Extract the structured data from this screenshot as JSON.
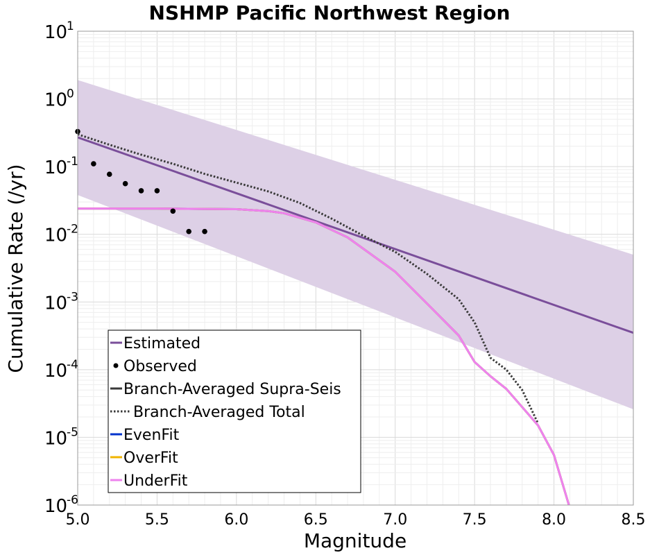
{
  "chart_data": {
    "type": "line",
    "title": "NSHMP Pacific Northwest Region",
    "xlabel": "Magnitude",
    "ylabel": "Cumulative Rate (/yr)",
    "xlim": [
      5.0,
      8.5
    ],
    "ylim": [
      1e-06,
      10
    ],
    "y_scale": "log",
    "x_ticks": [
      "5.0",
      "5.5",
      "6.0",
      "6.5",
      "7.0",
      "7.5",
      "8.0",
      "8.5"
    ],
    "y_ticks": [
      {
        "value": 10,
        "base": "10",
        "exp": "1"
      },
      {
        "value": 1,
        "base": "10",
        "exp": "0"
      },
      {
        "value": 0.1,
        "base": "10",
        "exp": "-1"
      },
      {
        "value": 0.01,
        "base": "10",
        "exp": "-2"
      },
      {
        "value": 0.001,
        "base": "10",
        "exp": "-3"
      },
      {
        "value": 0.0001,
        "base": "10",
        "exp": "-4"
      },
      {
        "value": 1e-05,
        "base": "10",
        "exp": "-5"
      },
      {
        "value": 1e-06,
        "base": "10",
        "exp": "-6"
      }
    ],
    "grid": true,
    "legend_position": "bottom-left",
    "colors": {
      "estimated": "#7a4e9a",
      "band": "#ddd0e6",
      "observed": "#000000",
      "supra": "#3a3a3a",
      "total": "#3a3a3a",
      "evenfit": "#0033cc",
      "overfit": "#f0b400",
      "underfit": "#ee82ee"
    },
    "legend": [
      {
        "key": "estimated",
        "label": "Estimated",
        "style": "line"
      },
      {
        "key": "observed",
        "label": "Observed",
        "style": "dot"
      },
      {
        "key": "supra",
        "label": "Branch-Averaged Supra-Seis",
        "style": "line"
      },
      {
        "key": "total",
        "label": "Branch-Averaged Total",
        "style": "dotted"
      },
      {
        "key": "evenfit",
        "label": "EvenFit",
        "style": "line"
      },
      {
        "key": "overfit",
        "label": "OverFit",
        "style": "line"
      },
      {
        "key": "underfit",
        "label": "UnderFit",
        "style": "line"
      }
    ],
    "band": {
      "x": [
        5.0,
        8.5
      ],
      "upper": [
        1.9,
        0.005
      ],
      "lower": [
        0.038,
        2.6e-05
      ]
    },
    "series": [
      {
        "key": "estimated",
        "name": "Estimated",
        "x": [
          5.0,
          8.5
        ],
        "y": [
          0.27,
          0.00035
        ]
      },
      {
        "key": "total",
        "name": "Branch-Averaged Total",
        "x": [
          5.0,
          5.2,
          5.4,
          5.6,
          5.8,
          6.0,
          6.2,
          6.4,
          6.6,
          6.8,
          7.0,
          7.2,
          7.4,
          7.5,
          7.6,
          7.7,
          7.8,
          7.9
        ],
        "y": [
          0.3,
          0.21,
          0.15,
          0.11,
          0.078,
          0.058,
          0.043,
          0.029,
          0.017,
          0.0095,
          0.0055,
          0.0026,
          0.0011,
          0.0005,
          0.00015,
          0.0001,
          5e-05,
          1.6e-05
        ]
      },
      {
        "key": "evenfit",
        "name": "EvenFit",
        "x": [
          5.0,
          5.5,
          6.0,
          6.2,
          6.3,
          6.5,
          6.7,
          7.0,
          7.2,
          7.4,
          7.5,
          7.6,
          7.7,
          7.8,
          7.9,
          8.0,
          8.1
        ],
        "y": [
          0.024,
          0.024,
          0.0235,
          0.022,
          0.0205,
          0.015,
          0.009,
          0.0028,
          0.00095,
          0.00032,
          0.00013,
          8e-05,
          5.2e-05,
          2.8e-05,
          1.5e-05,
          5.5e-06,
          9e-07
        ]
      },
      {
        "key": "overfit",
        "name": "OverFit",
        "x": [
          5.0,
          5.5,
          6.0,
          6.2,
          6.3,
          6.5,
          6.7,
          7.0,
          7.2,
          7.4,
          7.5,
          7.6,
          7.7,
          7.8,
          7.9,
          8.0,
          8.1
        ],
        "y": [
          0.024,
          0.024,
          0.0235,
          0.022,
          0.0205,
          0.015,
          0.009,
          0.0028,
          0.00095,
          0.00032,
          0.00013,
          8e-05,
          5.2e-05,
          2.8e-05,
          1.5e-05,
          5.5e-06,
          9e-07
        ]
      },
      {
        "key": "underfit",
        "name": "UnderFit",
        "x": [
          5.0,
          5.5,
          6.0,
          6.2,
          6.3,
          6.5,
          6.7,
          7.0,
          7.2,
          7.4,
          7.5,
          7.6,
          7.7,
          7.8,
          7.9,
          8.0,
          8.1
        ],
        "y": [
          0.024,
          0.024,
          0.0235,
          0.022,
          0.0205,
          0.015,
          0.009,
          0.0028,
          0.00095,
          0.00032,
          0.00013,
          8e-05,
          5.2e-05,
          2.8e-05,
          1.5e-05,
          5.5e-06,
          9e-07
        ]
      },
      {
        "key": "observed",
        "name": "Observed",
        "x": [
          5.0,
          5.1,
          5.2,
          5.3,
          5.4,
          5.5,
          5.6,
          5.7,
          5.8
        ],
        "y": [
          0.33,
          0.11,
          0.077,
          0.056,
          0.044,
          0.044,
          0.022,
          0.011,
          0.011
        ]
      }
    ]
  }
}
